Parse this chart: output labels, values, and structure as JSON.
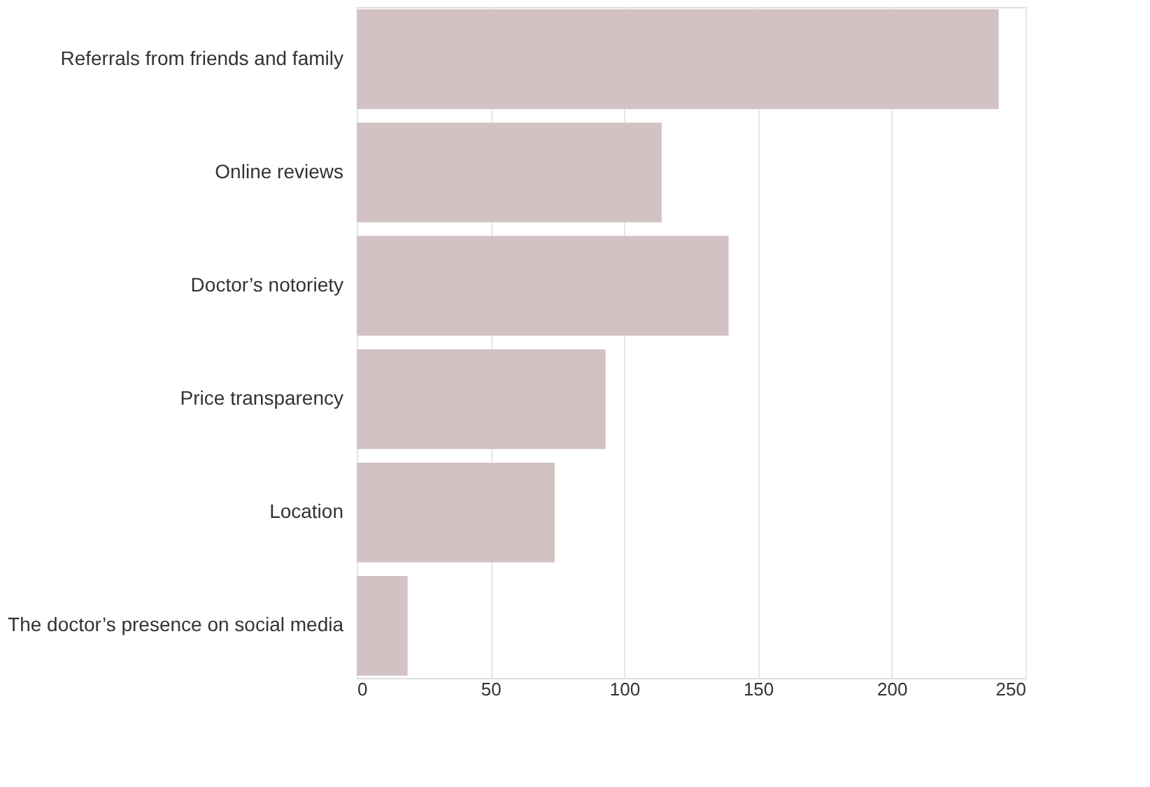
{
  "chart_data": {
    "type": "bar",
    "orientation": "horizontal",
    "categories": [
      "Referrals from friends and family",
      "Online reviews",
      "Doctor’s notoriety",
      "Price transparency",
      "Location",
      "The doctor’s presence on social media"
    ],
    "values": [
      240,
      114,
      139,
      93,
      74,
      19
    ],
    "color": "#d3c2c4",
    "xlim": [
      0,
      250
    ],
    "xticks": [
      0,
      50,
      100,
      150,
      200,
      250
    ],
    "grid": "x"
  }
}
